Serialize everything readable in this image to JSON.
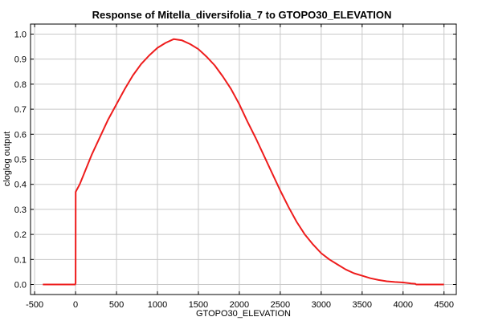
{
  "chart_data": {
    "type": "line",
    "title": "Response of Mitella_diversifolia_7 to GTOPO30_ELEVATION",
    "xlabel": "GTOPO30_ELEVATION",
    "ylabel": "cloglog output",
    "xlim": [
      -550,
      4650
    ],
    "ylim": [
      -0.04,
      1.04
    ],
    "xticks": [
      -500,
      0,
      500,
      1000,
      1500,
      2000,
      2500,
      3000,
      3500,
      4000,
      4500
    ],
    "xtick_labels": [
      "-500",
      "0",
      "500",
      "1000",
      "1500",
      "2000",
      "2500",
      "3000",
      "3500",
      "4000",
      "4500"
    ],
    "yticks": [
      0.0,
      0.1,
      0.2,
      0.3,
      0.4,
      0.5,
      0.6,
      0.7,
      0.8,
      0.9,
      1.0
    ],
    "ytick_labels": [
      "0.0",
      "0.1",
      "0.2",
      "0.3",
      "0.4",
      "0.5",
      "0.6",
      "0.7",
      "0.8",
      "0.9",
      "1.0"
    ],
    "grid": true,
    "color": "#ee1c1c",
    "series": [
      {
        "x": [
          -400,
          -10,
          -5,
          0,
          1,
          50,
          100,
          200,
          300,
          400,
          500,
          600,
          700,
          800,
          900,
          1000,
          1100,
          1200,
          1300,
          1400,
          1500,
          1600,
          1700,
          1800,
          1900,
          2000,
          2100,
          2200,
          2300,
          2400,
          2500,
          2600,
          2700,
          2800,
          2900,
          3000,
          3100,
          3200,
          3300,
          3400,
          3500,
          3600,
          3700,
          3800,
          3900,
          4000,
          4100,
          4150,
          4160,
          4200,
          4300,
          4400,
          4500
        ],
        "y": [
          0.0,
          0.0,
          0.0,
          0.005,
          0.37,
          0.4,
          0.44,
          0.52,
          0.59,
          0.66,
          0.72,
          0.78,
          0.835,
          0.88,
          0.915,
          0.945,
          0.965,
          0.98,
          0.975,
          0.96,
          0.94,
          0.91,
          0.875,
          0.83,
          0.78,
          0.72,
          0.65,
          0.585,
          0.515,
          0.445,
          0.375,
          0.31,
          0.25,
          0.2,
          0.16,
          0.125,
          0.1,
          0.08,
          0.06,
          0.045,
          0.035,
          0.025,
          0.018,
          0.013,
          0.01,
          0.008,
          0.004,
          0.003,
          0.0,
          0.0,
          0.0,
          0.0,
          0.0
        ]
      }
    ]
  }
}
